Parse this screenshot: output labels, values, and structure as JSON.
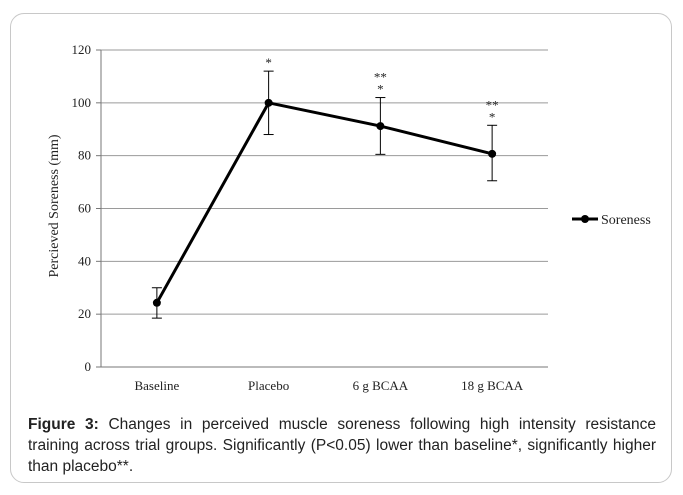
{
  "chart_data": {
    "type": "line",
    "categories": [
      "Baseline",
      "Placebo",
      "6 g BCAA",
      "18 g BCAA"
    ],
    "series": [
      {
        "name": "Soreness",
        "values": [
          24.3,
          100,
          91.2,
          80.7
        ],
        "error_upper": [
          30,
          112,
          102,
          91.5
        ],
        "error_lower": [
          18.5,
          88,
          80.5,
          70.5
        ],
        "color": "#000000"
      }
    ],
    "annotations": [
      "",
      "*",
      "**\n*",
      "**\n*"
    ],
    "ylabel": "Percieved Soreness (mm)",
    "xlabel": "",
    "ylim": [
      0,
      120
    ],
    "yticks": [
      0,
      20,
      40,
      60,
      80,
      100,
      120
    ],
    "grid": true,
    "legend_position": "right"
  },
  "caption": {
    "label": "Figure 3:",
    "text": "Changes in perceived muscle soreness following high intensity resistance training across trial groups. Significantly (P<0.05) lower than baseline*, significantly higher than placebo**."
  }
}
